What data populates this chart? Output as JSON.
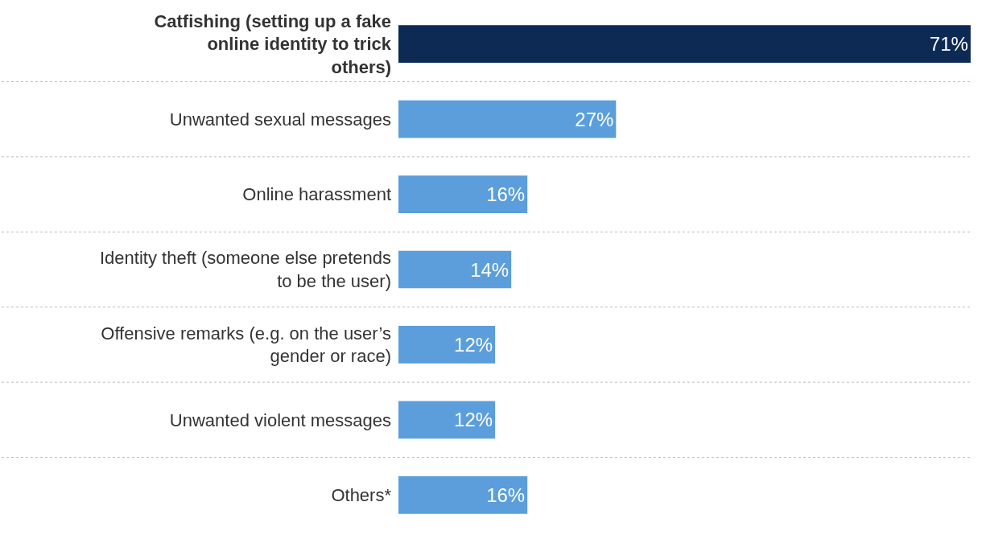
{
  "chart_data": {
    "type": "bar",
    "orientation": "horizontal",
    "categories": [
      "Catfishing (setting up a fake online identity to trick others)",
      "Unwanted sexual messages",
      "Online harassment",
      "Identity theft (someone else pretends to be the user)",
      "Offensive remarks (e.g. on the user’s gender or race)",
      "Unwanted violent messages",
      "Others*"
    ],
    "values": [
      71,
      27,
      16,
      14,
      12,
      12,
      16
    ],
    "colors": [
      "#0d2a55",
      "#5b9edb",
      "#5b9edb",
      "#5b9edb",
      "#5b9edb",
      "#5b9edb",
      "#5b9edb"
    ],
    "value_labels": [
      "71%",
      "27%",
      "16%",
      "14%",
      "12%",
      "12%",
      "16%"
    ],
    "grid": "y"
  }
}
